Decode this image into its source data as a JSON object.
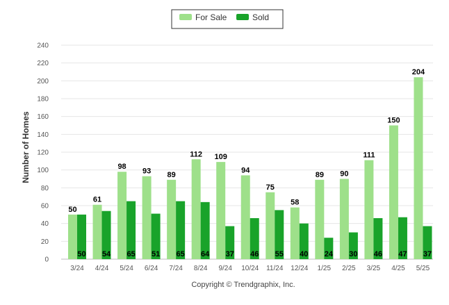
{
  "chart_data": {
    "type": "bar",
    "categories": [
      "3/24",
      "4/24",
      "5/24",
      "6/24",
      "7/24",
      "8/24",
      "9/24",
      "10/24",
      "11/24",
      "12/24",
      "1/25",
      "2/25",
      "3/25",
      "4/25",
      "5/25"
    ],
    "series": [
      {
        "name": "For Sale",
        "color": "#9ee08a",
        "values": [
          50,
          61,
          98,
          93,
          89,
          112,
          109,
          94,
          75,
          58,
          89,
          90,
          111,
          150,
          204
        ]
      },
      {
        "name": "Sold",
        "color": "#19a32a",
        "values": [
          50,
          54,
          65,
          51,
          65,
          64,
          37,
          46,
          55,
          40,
          24,
          30,
          46,
          47,
          37
        ]
      }
    ],
    "ylabel": "Number of Homes",
    "xlabel": "",
    "ylim": [
      0,
      240
    ],
    "yticks": [
      0,
      20,
      40,
      60,
      80,
      100,
      120,
      140,
      160,
      180,
      200,
      220,
      240
    ],
    "grid": true,
    "legend": "top-center",
    "footer": "Copyright © Trendgraphix, Inc."
  }
}
